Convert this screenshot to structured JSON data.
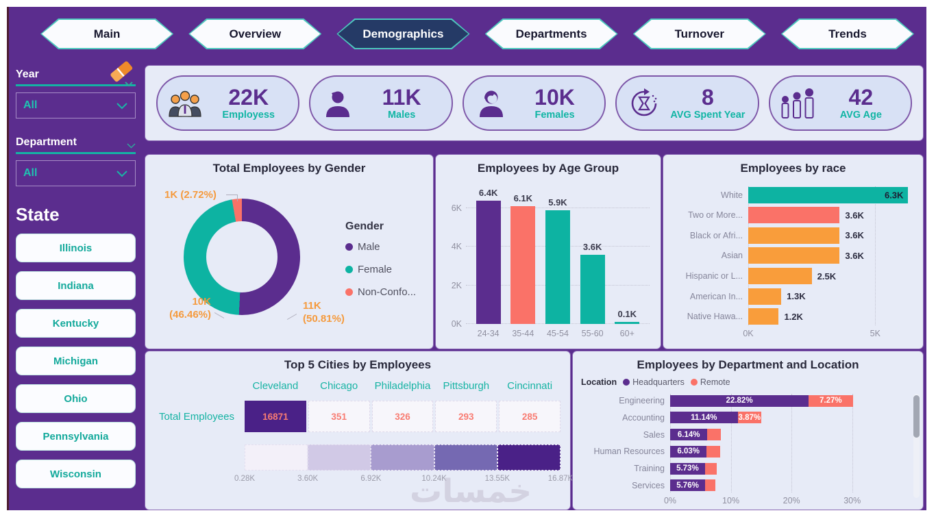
{
  "nav": {
    "items": [
      {
        "label": "Main",
        "active": false
      },
      {
        "label": "Overview",
        "active": false
      },
      {
        "label": "Demographics",
        "active": true
      },
      {
        "label": "Departments",
        "active": false
      },
      {
        "label": "Turnover",
        "active": false
      },
      {
        "label": "Trends",
        "active": false
      }
    ]
  },
  "sidebar": {
    "year_label": "Year",
    "year_value": "All",
    "department_label": "Department",
    "department_value": "All",
    "state_label": "State",
    "states": [
      "Illinois",
      "Indiana",
      "Kentucky",
      "Michigan",
      "Ohio",
      "Pennsylvania",
      "Wisconsin"
    ]
  },
  "kpis": [
    {
      "value": "22K",
      "label": "Employess",
      "icon": "team-icon"
    },
    {
      "value": "11K",
      "label": "Males",
      "icon": "male-icon"
    },
    {
      "value": "10K",
      "label": "Females",
      "icon": "female-icon"
    },
    {
      "value": "8",
      "label": "AVG Spent Year",
      "icon": "hourglass-icon"
    },
    {
      "value": "42",
      "label": "AVG Age",
      "icon": "age-icon"
    }
  ],
  "colors": {
    "canvas_purple": "#5b2d8e",
    "active_navy": "#253a66",
    "teal": "#10b5a4",
    "salmon": "#fa7268",
    "orange": "#f99d3b",
    "panel_bg": "#e7ebf7",
    "card_bg": "#d8e1f5",
    "callout_orange": "#f59a3d"
  },
  "watermark": {
    "text": "خمسات"
  },
  "chart_data": [
    {
      "id": "gender",
      "type": "pie",
      "title": "Total Employees by Gender",
      "legend_title": "Gender",
      "legend_position": "right",
      "slices": [
        {
          "label": "Male",
          "value": "11K",
          "pct": 50.81,
          "color": "#5b2d8e",
          "co1": "11K",
          "co2": "(50.81%)"
        },
        {
          "label": "Female",
          "value": "10K",
          "pct": 46.46,
          "color": "#0db3a2",
          "co1": "10K",
          "co2": "(46.46%)"
        },
        {
          "label": "Non-Confo...",
          "value": "1K",
          "pct": 2.72,
          "color": "#fa7268",
          "co1": "1K (2.72%)",
          "co2": ""
        }
      ]
    },
    {
      "id": "age",
      "type": "bar",
      "title": "Employees by Age Group",
      "categories": [
        "24-34",
        "35-44",
        "45-54",
        "55-60",
        "60+"
      ],
      "values": [
        6.4,
        6.1,
        5.9,
        3.6,
        0.1
      ],
      "labels": [
        "6.4K",
        "6.1K",
        "5.9K",
        "3.6K",
        "0.1K"
      ],
      "bar_colors": [
        "#5b2d8e",
        "#fa7268",
        "#0db3a2",
        "#0db3a2",
        "#0db3a2"
      ],
      "yticks": [
        [
          "6K",
          6
        ],
        [
          "4K",
          4
        ],
        [
          "2K",
          2
        ],
        [
          "0K",
          0
        ]
      ],
      "ymax": 7,
      "ylim": [
        0,
        7
      ],
      "grid": "dotted"
    },
    {
      "id": "race",
      "type": "bar",
      "orientation": "horizontal",
      "title": "Employees by race",
      "categories": [
        "White",
        "Two or More...",
        "Black or Afri...",
        "Asian",
        "Hispanic or L...",
        "American In...",
        "Native Hawa..."
      ],
      "values": [
        6.3,
        3.6,
        3.6,
        3.6,
        2.5,
        1.3,
        1.2
      ],
      "labels": [
        "6.3K",
        "3.6K",
        "3.6K",
        "3.6K",
        "2.5K",
        "1.3K",
        "1.2K"
      ],
      "bar_colors": [
        "#0db3a2",
        "#fa7268",
        "#f99d3b",
        "#f99d3b",
        "#f99d3b",
        "#f99d3b",
        "#f99d3b"
      ],
      "xticks": [
        [
          "0K",
          0
        ],
        [
          "5K",
          5
        ]
      ],
      "xmax": 6.45,
      "xlim": [
        0,
        6.45
      ],
      "grid": "dotted"
    },
    {
      "id": "cities",
      "type": "table",
      "title": "Top 5 Cities by Employees",
      "row_label": "Total Employees",
      "columns": [
        "Cleveland",
        "Chicago",
        "Philadelphia",
        "Pittsburgh",
        "Cincinnati"
      ],
      "values": [
        "16871",
        "351",
        "326",
        "293",
        "285"
      ],
      "scale_labels": [
        "0.28K",
        "3.60K",
        "6.92K",
        "10.24K",
        "13.55K",
        "16.87K"
      ],
      "scale_colors": [
        "#f3f0f9",
        "#d1c9e6",
        "#a89ccf",
        "#7569b2",
        "#4a2187"
      ]
    },
    {
      "id": "dept",
      "type": "bar",
      "orientation": "horizontal-stacked",
      "title": "Employees by Department and Location",
      "legend_title": "Location",
      "series": [
        {
          "name": "Headquarters",
          "color": "#5b2d8e"
        },
        {
          "name": "Remote",
          "color": "#fa7268"
        }
      ],
      "categories": [
        "Engineering",
        "Accounting",
        "Sales",
        "Human Resources",
        "Training",
        "Services"
      ],
      "hq": [
        22.82,
        11.14,
        6.14,
        6.03,
        5.73,
        5.76
      ],
      "remote": [
        7.27,
        3.87,
        2.2,
        2.2,
        1.9,
        1.7
      ],
      "hq_labels": [
        "22.82%",
        "11.14%",
        "6.14%",
        "6.03%",
        "5.73%",
        "5.76%"
      ],
      "remote_labels": [
        "7.27%",
        "3.87%",
        "",
        "",
        "",
        ""
      ],
      "xticks": [
        [
          "0%",
          0
        ],
        [
          "10%",
          10
        ],
        [
          "20%",
          20
        ],
        [
          "30%",
          30
        ]
      ],
      "xmax": 38.5,
      "xlim": [
        0,
        38.5
      ],
      "grid": "dotted"
    }
  ]
}
